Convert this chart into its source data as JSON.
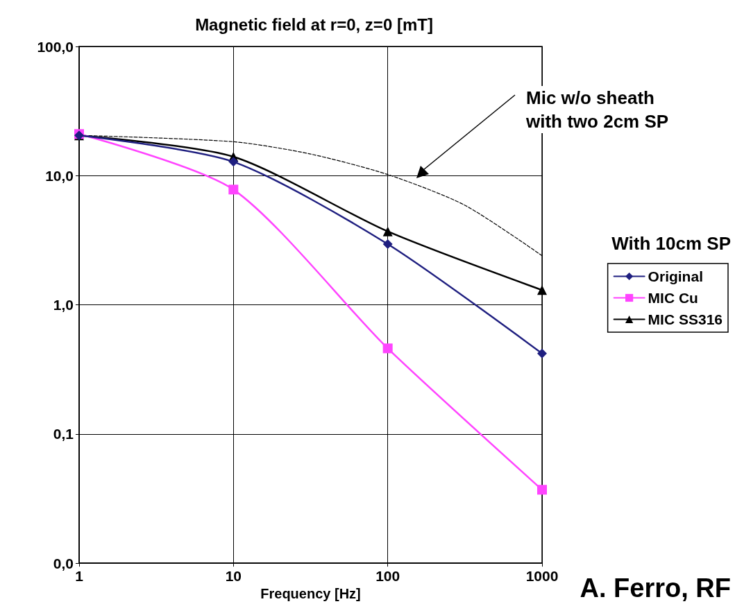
{
  "chart_data": {
    "type": "line",
    "title": "Magnetic field at r=0, z=0 [mT]",
    "xlabel": "Frequency [Hz]",
    "legend_title": "With 10cm SP",
    "x": [
      1,
      10,
      100,
      1000
    ],
    "series": [
      {
        "name": "Original",
        "color": "#1f1f80",
        "marker": "diamond",
        "values": [
          20.5,
          12.8,
          2.95,
          0.42
        ]
      },
      {
        "name": "MIC Cu",
        "color": "#ff44ff",
        "marker": "square",
        "values": [
          21,
          7.8,
          0.46,
          0.037
        ]
      },
      {
        "name": "MIC SS316",
        "color": "#000000",
        "marker": "triangle",
        "values": [
          20.5,
          14,
          3.7,
          1.3
        ]
      },
      {
        "color": "#000000",
        "marker": "none",
        "line_style": "dashed",
        "x": [
          1,
          10,
          31.6,
          100,
          316,
          1000
        ],
        "values": [
          20.5,
          18.3,
          14.7,
          10.2,
          5.9,
          2.4
        ]
      }
    ],
    "log": "xy",
    "xlim": [
      1,
      1000
    ],
    "xticks": [
      1,
      10,
      100,
      1000
    ],
    "ylim": [
      0.01,
      100
    ],
    "yticks": [
      {
        "value": 0.01,
        "label": "0,0"
      },
      {
        "value": 0.1,
        "label": "0,1"
      },
      {
        "value": 1,
        "label": "1,0"
      },
      {
        "value": 10,
        "label": "10,0"
      },
      {
        "value": 100,
        "label": "100,0"
      }
    ],
    "grid": true,
    "legend": "right",
    "line_style": "solid",
    "annotations": [
      "Mic w/o sheath\nwith two 2cm SP",
      "A. Ferro, RF"
    ]
  }
}
